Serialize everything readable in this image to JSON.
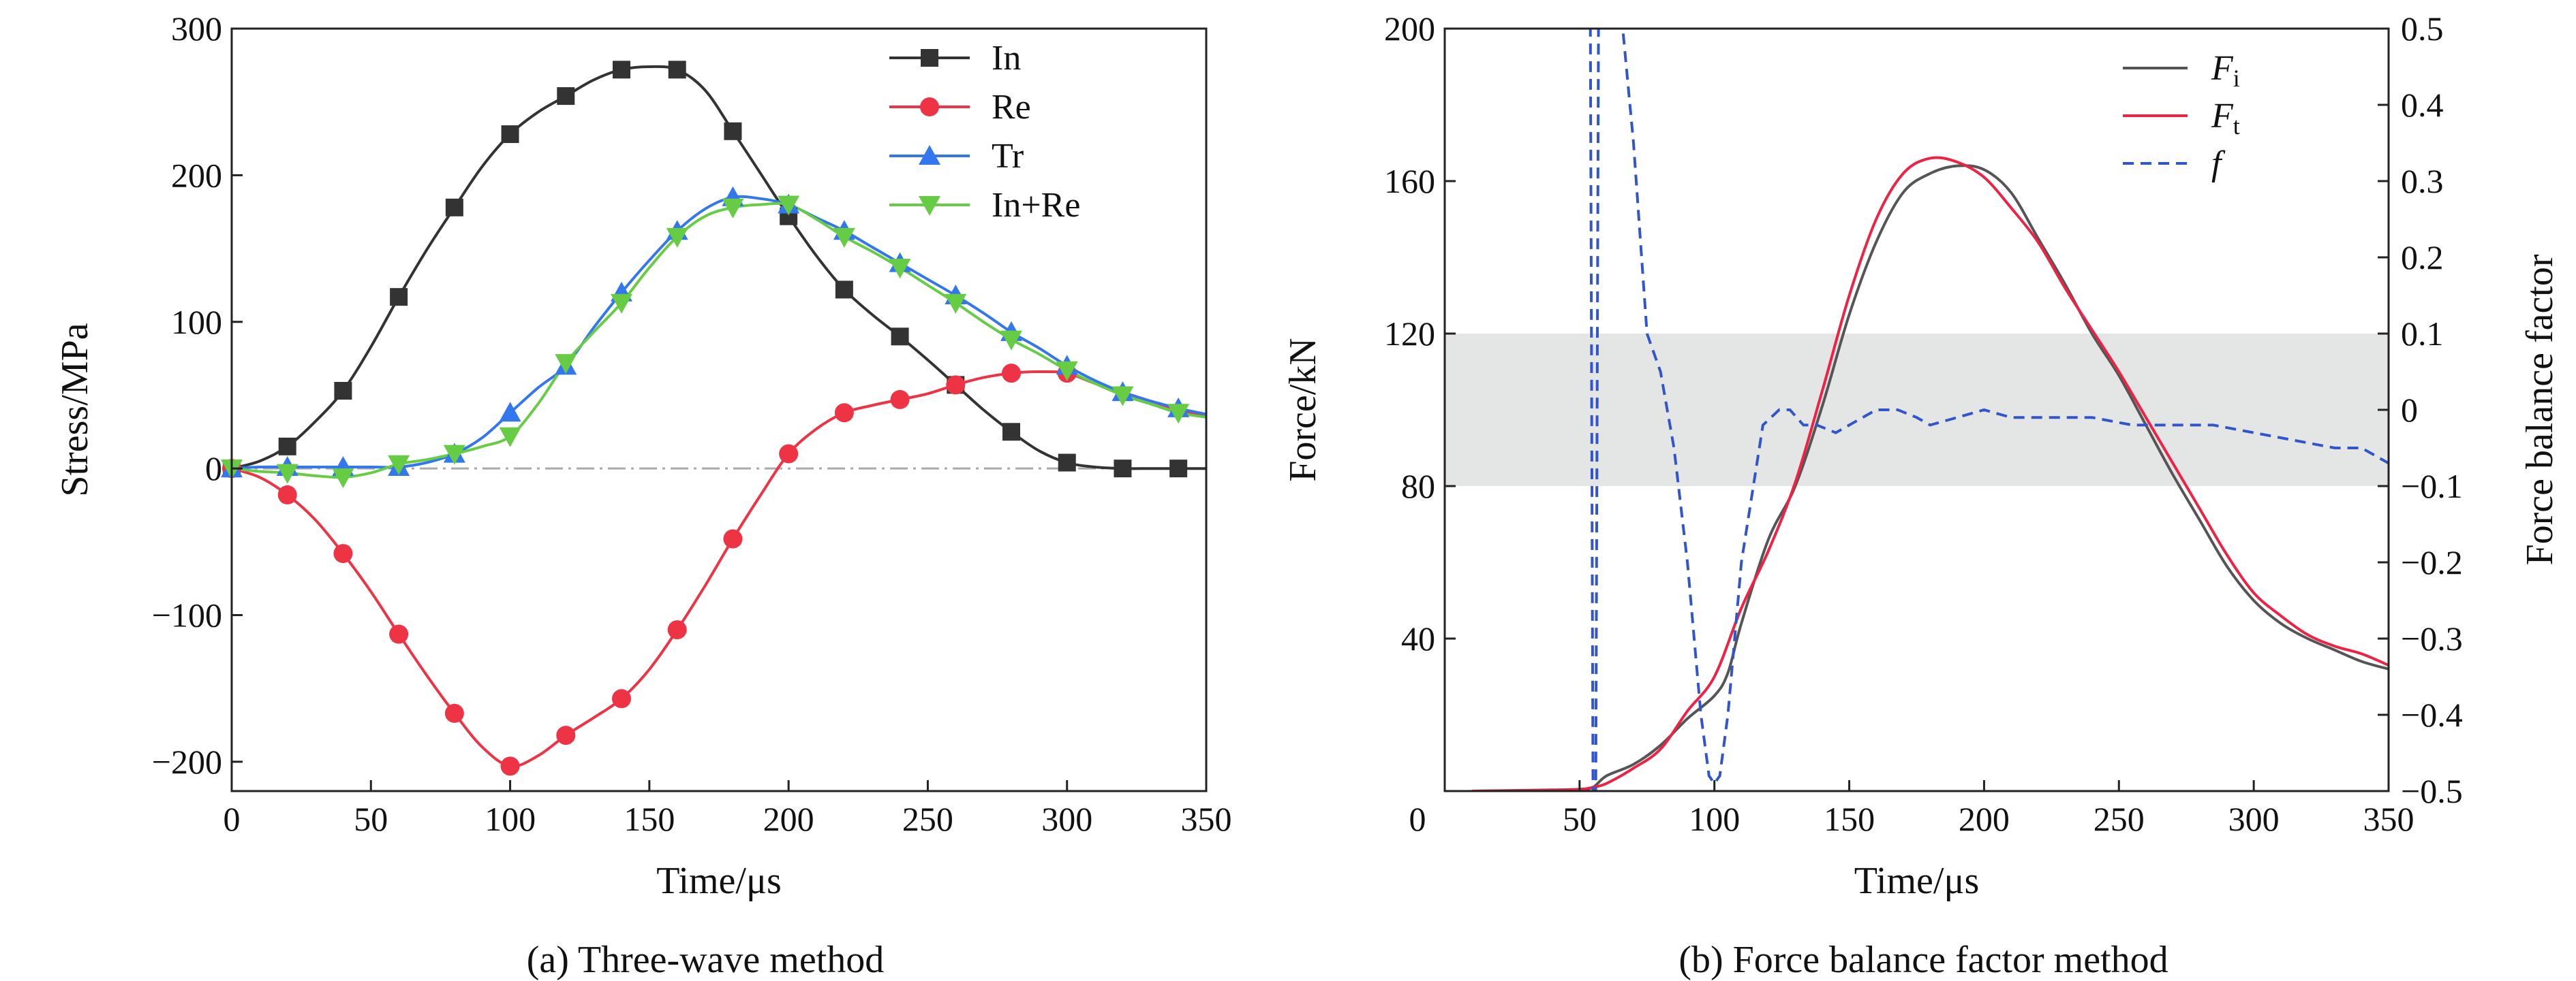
{
  "chart_data": [
    {
      "type": "line",
      "caption": "(a) Three-wave method",
      "xlabel": "Time/μs",
      "ylabel": "Stress/MPa",
      "xlim": [
        0,
        350
      ],
      "ylim": [
        -220,
        300
      ],
      "xticks": [
        0,
        50,
        100,
        150,
        200,
        250,
        300,
        350
      ],
      "yticks": [
        -200,
        -100,
        0,
        100,
        200,
        300
      ],
      "ytick_labels": [
        "−200",
        "−100",
        "0",
        "100",
        "200",
        "300"
      ],
      "zero_line": true,
      "legend_position": "top-right",
      "series": [
        {
          "name": "In",
          "color": "#333333",
          "marker": "square",
          "x": [
            0,
            20,
            40,
            60,
            80,
            100,
            120,
            140,
            160,
            180,
            200,
            220,
            240,
            260,
            280,
            300,
            320,
            340
          ],
          "y": [
            0,
            15,
            53,
            117,
            178,
            228,
            254,
            272,
            272,
            230,
            172,
            122,
            90,
            57,
            25,
            4,
            0,
            0
          ],
          "curve_x": [
            0,
            10,
            20,
            30,
            40,
            50,
            60,
            70,
            80,
            90,
            100,
            110,
            120,
            130,
            140,
            150,
            160,
            170,
            180,
            190,
            200,
            210,
            220,
            230,
            240,
            250,
            260,
            270,
            280,
            290,
            300,
            310,
            320,
            330,
            340,
            350
          ],
          "curve_y": [
            0,
            5,
            15,
            32,
            53,
            83,
            117,
            149,
            178,
            206,
            228,
            243,
            254,
            265,
            272,
            274,
            272,
            258,
            230,
            201,
            172,
            145,
            122,
            105,
            90,
            74,
            57,
            40,
            25,
            12,
            4,
            1,
            0,
            0,
            0,
            0
          ]
        },
        {
          "name": "Re",
          "color": "#ee3344",
          "marker": "circle",
          "x": [
            0,
            20,
            40,
            60,
            80,
            100,
            120,
            140,
            160,
            180,
            200,
            220,
            240,
            260,
            280,
            300
          ],
          "y": [
            0,
            -18,
            -58,
            -113,
            -167,
            -203,
            -182,
            -157,
            -110,
            -48,
            10,
            38,
            47,
            57,
            65,
            65
          ],
          "curve_x": [
            0,
            10,
            20,
            30,
            40,
            50,
            60,
            70,
            80,
            90,
            100,
            110,
            120,
            130,
            140,
            150,
            160,
            170,
            180,
            190,
            200,
            210,
            220,
            230,
            240,
            250,
            260,
            270,
            280,
            290,
            300,
            310,
            320,
            330,
            340,
            350
          ],
          "curve_y": [
            0,
            -6,
            -18,
            -35,
            -58,
            -84,
            -113,
            -141,
            -167,
            -190,
            -203,
            -196,
            -182,
            -170,
            -157,
            -137,
            -110,
            -80,
            -48,
            -18,
            10,
            27,
            38,
            43,
            47,
            51,
            57,
            62,
            65,
            66,
            65,
            58,
            52,
            46,
            40,
            36
          ]
        },
        {
          "name": "Tr",
          "color": "#3377ee",
          "marker": "triangle-up",
          "x": [
            0,
            20,
            40,
            60,
            80,
            100,
            120,
            140,
            160,
            180,
            200,
            220,
            240,
            260,
            280,
            300,
            320,
            340
          ],
          "y": [
            0,
            1,
            1,
            1,
            10,
            38,
            70,
            120,
            162,
            185,
            180,
            162,
            140,
            118,
            93,
            70,
            52,
            41
          ],
          "curve_x": [
            0,
            10,
            20,
            30,
            40,
            50,
            60,
            70,
            80,
            90,
            100,
            110,
            120,
            130,
            140,
            150,
            160,
            170,
            180,
            190,
            200,
            210,
            220,
            230,
            240,
            250,
            260,
            270,
            280,
            290,
            300,
            310,
            320,
            330,
            340,
            350
          ],
          "curve_y": [
            0,
            1,
            1,
            1,
            1,
            1,
            1,
            4,
            10,
            21,
            38,
            55,
            70,
            96,
            120,
            142,
            162,
            177,
            185,
            184,
            180,
            171,
            162,
            151,
            140,
            129,
            118,
            106,
            93,
            82,
            70,
            60,
            52,
            46,
            41,
            37
          ]
        },
        {
          "name": "In+Re",
          "color": "#66cc44",
          "marker": "triangle-down",
          "x": [
            0,
            20,
            40,
            60,
            80,
            100,
            120,
            140,
            160,
            180,
            200,
            220,
            240,
            260,
            280,
            300,
            320,
            340
          ],
          "y": [
            0,
            -3,
            -6,
            3,
            10,
            22,
            72,
            113,
            158,
            178,
            180,
            158,
            137,
            113,
            88,
            67,
            50,
            38
          ],
          "curve_x": [
            0,
            10,
            20,
            30,
            40,
            50,
            60,
            70,
            80,
            90,
            100,
            110,
            120,
            130,
            140,
            150,
            160,
            170,
            180,
            190,
            200,
            210,
            220,
            230,
            240,
            250,
            260,
            270,
            280,
            290,
            300,
            310,
            320,
            330,
            340,
            350
          ],
          "curve_y": [
            0,
            -2,
            -3,
            -5,
            -6,
            -3,
            3,
            6,
            10,
            15,
            22,
            44,
            72,
            93,
            113,
            137,
            158,
            172,
            178,
            180,
            180,
            170,
            158,
            148,
            137,
            125,
            113,
            100,
            88,
            78,
            67,
            58,
            50,
            44,
            38,
            35
          ]
        }
      ]
    },
    {
      "type": "line",
      "caption": "(b) Force balance factor method",
      "xlabel": "Time/μs",
      "ylabel": "Force/kN",
      "ylabel_right": "Force balance factor",
      "xlim": [
        0,
        350
      ],
      "ylim": [
        0,
        200
      ],
      "ylim_right": [
        -0.5,
        0.5
      ],
      "xticks": [
        0,
        50,
        100,
        150,
        200,
        250,
        300,
        350
      ],
      "yticks": [
        40,
        80,
        120,
        160,
        200
      ],
      "yticks_right": [
        -0.5,
        -0.4,
        -0.3,
        -0.2,
        -0.1,
        0,
        0.1,
        0.2,
        0.3,
        0.4,
        0.5
      ],
      "ytick_labels_right": [
        "−0.5",
        "−0.4",
        "−0.3",
        "−0.2",
        "−0.1",
        "0",
        "0.1",
        "0.2",
        "0.3",
        "0.4",
        "0.5"
      ],
      "x_origin_label": "0",
      "shaded_band_factor": [
        -0.1,
        0.1
      ],
      "shaded_band_color": "#e4e6e6",
      "legend_position": "top-right",
      "series": [
        {
          "name": "F",
          "subscript": "i",
          "color": "#555555",
          "dash": "solid",
          "axis": "left",
          "x": [
            10,
            40,
            50,
            55,
            60,
            70,
            80,
            90,
            100,
            105,
            110,
            120,
            130,
            140,
            150,
            160,
            170,
            180,
            190,
            200,
            210,
            220,
            230,
            240,
            250,
            260,
            270,
            280,
            290,
            300,
            310,
            320,
            330,
            340,
            350
          ],
          "y": [
            0,
            0.3,
            0.5,
            1,
            4,
            7,
            12,
            19,
            25,
            31,
            44,
            66,
            80,
            101,
            125,
            144,
            157,
            162,
            164,
            163,
            157,
            145,
            133,
            120,
            109,
            96,
            83,
            71,
            59,
            50,
            44,
            40,
            37,
            34,
            32
          ]
        },
        {
          "name": "F",
          "subscript": "t",
          "color": "#ee2244",
          "dash": "solid",
          "axis": "left",
          "x": [
            10,
            40,
            50,
            55,
            60,
            70,
            80,
            90,
            100,
            110,
            120,
            130,
            140,
            150,
            160,
            170,
            180,
            190,
            200,
            210,
            220,
            230,
            240,
            250,
            260,
            270,
            280,
            290,
            300,
            310,
            320,
            330,
            340,
            350
          ],
          "y": [
            0,
            0.2,
            0.4,
            1,
            2,
            6,
            11,
            21,
            30,
            48,
            63,
            81,
            105,
            130,
            150,
            162,
            166,
            165,
            161,
            153,
            144,
            132,
            121,
            110,
            98,
            86,
            74,
            62,
            52,
            46,
            41,
            38,
            36,
            33
          ]
        },
        {
          "name": "f",
          "color": "#3355cc",
          "dash": "dashed",
          "axis": "right",
          "x": [
            53,
            54,
            55,
            56,
            57,
            58,
            59,
            60,
            64,
            66,
            70,
            75,
            80,
            85,
            90,
            95,
            98,
            100,
            102,
            105,
            110,
            118,
            124,
            128,
            133,
            138,
            145,
            150,
            160,
            168,
            175,
            180,
            190,
            200,
            210,
            225,
            240,
            255,
            270,
            285,
            300,
            315,
            330,
            340,
            350
          ],
          "y": [
            0.55,
            0.5,
            -0.5,
            -0.5,
            0.5,
            0.55,
            0.55,
            0.55,
            0.55,
            0.5,
            0.35,
            0.1,
            0.05,
            -0.05,
            -0.2,
            -0.4,
            -0.48,
            -0.49,
            -0.48,
            -0.4,
            -0.2,
            -0.02,
            0.0,
            0.0,
            -0.02,
            -0.02,
            -0.03,
            -0.02,
            0.0,
            0.0,
            -0.01,
            -0.02,
            -0.01,
            0.0,
            -0.01,
            -0.01,
            -0.01,
            -0.02,
            -0.02,
            -0.02,
            -0.03,
            -0.04,
            -0.05,
            -0.05,
            -0.07
          ]
        }
      ]
    }
  ]
}
